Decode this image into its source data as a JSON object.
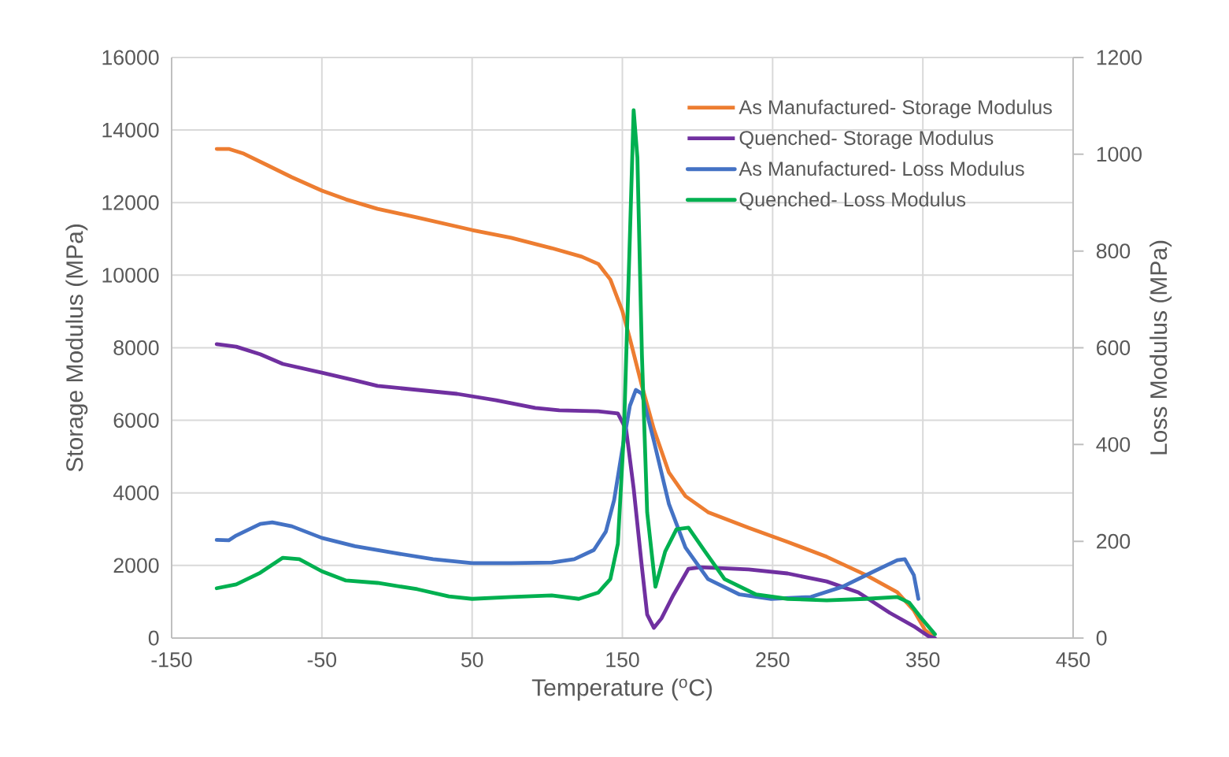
{
  "chart_data": {
    "type": "line",
    "xlabel": "Temperature ($^{o}$C)",
    "ylabel": "Storage Modulus (MPa)",
    "y2label": "Loss Modulus (MPa)",
    "xlim": [
      -150,
      450
    ],
    "xticks": [
      -150,
      -50,
      50,
      150,
      250,
      350,
      450
    ],
    "ylim": [
      0,
      16000
    ],
    "yticks": [
      0,
      2000,
      4000,
      6000,
      8000,
      10000,
      12000,
      14000,
      16000
    ],
    "y2lim": [
      0,
      1200
    ],
    "y2ticks": [
      0,
      200,
      400,
      600,
      800,
      1000,
      1200
    ],
    "grid": true,
    "legend": "top right",
    "series": [
      {
        "name": "As Manufactured- Storage Modulus",
        "color": "#ed7d31",
        "axis": "y",
        "x": [
          -120,
          -112,
          -102,
          -86,
          -70,
          -50,
          -34,
          -13,
          13.5,
          50,
          76,
          103,
          123,
          134,
          142,
          150,
          155,
          163,
          171,
          181,
          192,
          207,
          234,
          260,
          286,
          312,
          333,
          344,
          351.5,
          357
        ],
        "values": [
          13480,
          13480,
          13350,
          13025,
          12700,
          12330,
          12090,
          11830,
          11590,
          11245,
          11030,
          10745,
          10510,
          10310,
          9880,
          9010,
          8250,
          6950,
          5750,
          4560,
          3910,
          3470,
          3040,
          2650,
          2240,
          1740,
          1260,
          760,
          220,
          40
        ]
      },
      {
        "name": "Quenched- Storage Modulus",
        "color": "#7030a0",
        "axis": "y",
        "x": [
          -120,
          -107,
          -91,
          -76,
          -50,
          -28,
          -13,
          13.5,
          40,
          66,
          92,
          108,
          134,
          147,
          152.5,
          157.5,
          163,
          166.5,
          171,
          176,
          184,
          194,
          202,
          234,
          260,
          286,
          307,
          328,
          344,
          354,
          358
        ],
        "values": [
          8100,
          8030,
          7820,
          7555,
          7315,
          7100,
          6950,
          6840,
          6730,
          6555,
          6340,
          6275,
          6250,
          6190,
          5750,
          4125,
          1955,
          650,
          280,
          540,
          1190,
          1910,
          1950,
          1890,
          1780,
          1560,
          1260,
          695,
          325,
          45,
          0
        ]
      },
      {
        "name": "As Manufactured- Loss Modulus",
        "color": "#4472c4",
        "axis": "y2",
        "x": [
          -120,
          -112,
          -107,
          -91,
          -83,
          -70,
          -50,
          -28,
          -2,
          24,
          50,
          76,
          103,
          118,
          131,
          139,
          144.5,
          150,
          155,
          159,
          163,
          171,
          181,
          192,
          207,
          228,
          249,
          275.5,
          296.5,
          317.5,
          333,
          338,
          344,
          347
        ],
        "values": [
          203,
          202,
          212,
          236,
          239,
          231,
          207,
          190,
          176,
          163,
          155,
          155,
          156,
          163,
          182,
          220,
          285,
          391,
          480,
          513,
          505,
          407,
          277,
          187,
          122,
          90,
          81,
          85,
          106,
          138,
          161,
          163,
          130,
          81
        ]
      },
      {
        "name": "Quenched- Loss Modulus",
        "color": "#00b050",
        "axis": "y2",
        "x": [
          -120,
          -107,
          -91,
          -76,
          -65,
          -50,
          -34,
          -13,
          13.5,
          34.5,
          50,
          76,
          103,
          121,
          134,
          142,
          147,
          151,
          155,
          157.5,
          160,
          163,
          166.5,
          172,
          178.5,
          186,
          194,
          205,
          218,
          239,
          260,
          286,
          312,
          333,
          341,
          349,
          358
        ],
        "values": [
          103,
          111,
          135,
          166,
          163,
          138,
          119,
          114,
          101,
          86,
          81,
          85,
          88,
          81,
          94,
          122,
          195,
          423,
          830,
          1091,
          993,
          586,
          260,
          106,
          179,
          225,
          228,
          179,
          122,
          90,
          81,
          78,
          81,
          85,
          73,
          41,
          8
        ]
      }
    ]
  }
}
